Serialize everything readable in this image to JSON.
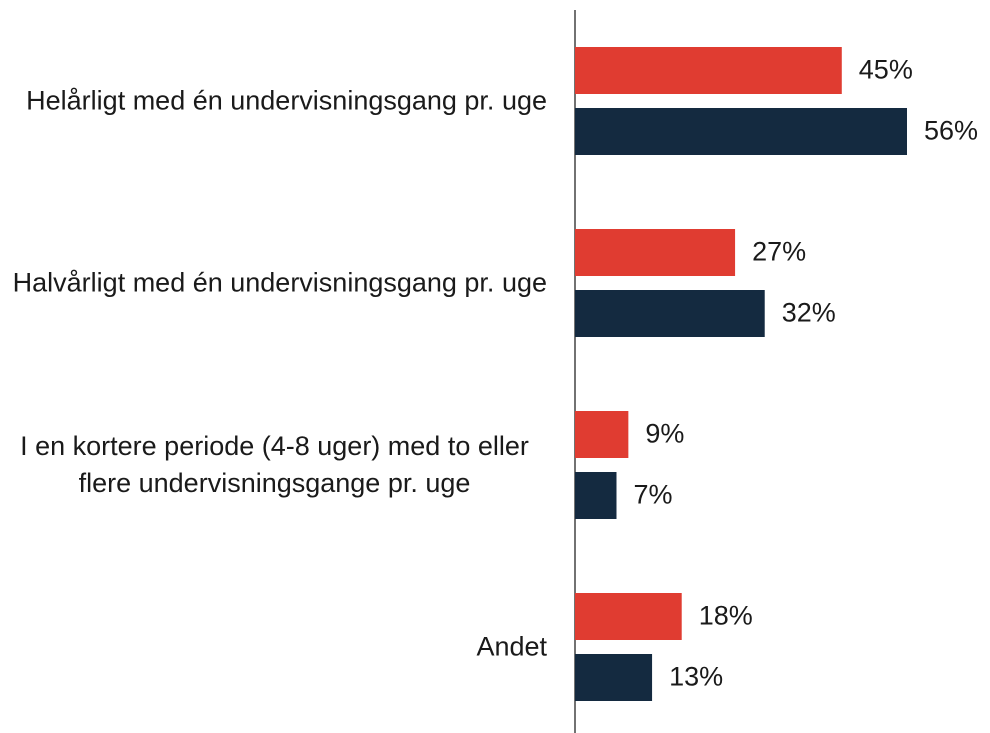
{
  "chart_data": {
    "type": "bar",
    "orientation": "horizontal",
    "categories": [
      "Helårligt med én undervisningsgang pr. uge",
      "Halvårligt med én undervisningsgang pr. uge",
      "I en kortere periode (4-8 uger) med to eller flere undervisningsgange pr. uge",
      "Andet"
    ],
    "series": [
      {
        "color": "#e03c31",
        "values": [
          45,
          27,
          9,
          18
        ],
        "value_labels": [
          "45%",
          "27%",
          "9%",
          "18%"
        ]
      },
      {
        "color": "#142a40",
        "values": [
          56,
          32,
          7,
          13
        ],
        "value_labels": [
          "56%",
          "32%",
          "7%",
          "13%"
        ]
      }
    ],
    "xlim": [
      0,
      70
    ]
  }
}
